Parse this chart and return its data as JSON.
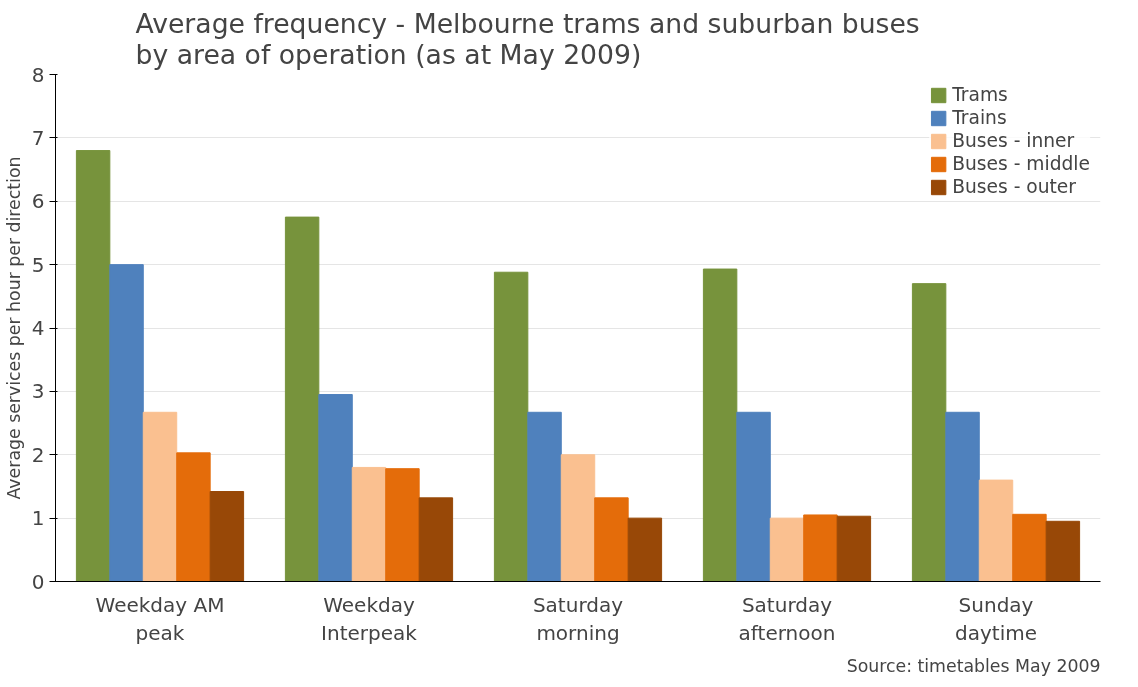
{
  "chart_data": {
    "type": "bar",
    "title": "Average frequency - Melbourne trams and suburban buses by area of operation (as at May 2009)",
    "ylabel": "Average services per hour per direction",
    "categories": [
      "Weekday AM peak",
      "Weekday Interpeak",
      "Saturday morning",
      "Saturday afternoon",
      "Sunday daytime"
    ],
    "series": [
      {
        "name": "Trams",
        "color": "#77933c",
        "values": [
          6.8,
          5.75,
          4.88,
          4.93,
          4.7
        ]
      },
      {
        "name": "Trains",
        "color": "#4f81bd",
        "values": [
          5.0,
          2.95,
          2.67,
          2.67,
          2.67
        ]
      },
      {
        "name": "Buses - inner",
        "color": "#fac090",
        "values": [
          2.67,
          1.8,
          2.0,
          1.0,
          1.6
        ]
      },
      {
        "name": "Buses - middle",
        "color": "#e46c0a",
        "values": [
          2.03,
          1.78,
          1.32,
          1.05,
          1.06
        ]
      },
      {
        "name": "Buses - outer",
        "color": "#984807",
        "values": [
          1.42,
          1.32,
          1.0,
          1.03,
          0.95
        ]
      }
    ],
    "ylim": [
      0,
      8
    ],
    "yticks": [
      0,
      1,
      2,
      3,
      4,
      5,
      6,
      7,
      8
    ],
    "grid": "y",
    "legend": "top right",
    "annotations": [
      "Source: timetables May 2009"
    ]
  }
}
